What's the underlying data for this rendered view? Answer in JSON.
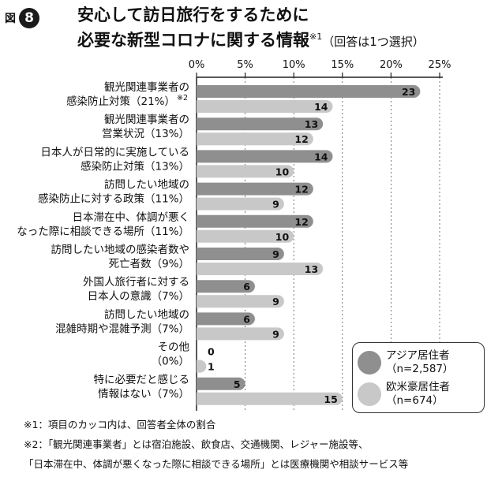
{
  "figure": {
    "label": "図",
    "number": "8",
    "title_line1": "安心して訪日旅行をするために",
    "title_line2": "必要な新型コロナに関する情報",
    "title_note": "※1",
    "title_sub": "（回答は1つ選択）"
  },
  "colors": {
    "asia": "#8f8f8f",
    "western": "#c8c8c8",
    "axis": "#222222",
    "grid": "#555555"
  },
  "chart_data": {
    "type": "bar",
    "orientation": "horizontal",
    "categories": [
      [
        "観光関連事業者の",
        "感染防止対策（21%）"
      ],
      [
        "観光関連事業者の",
        "営業状況（13%）"
      ],
      [
        "日本人が日常的に実施している",
        "感染防止対策（13%）"
      ],
      [
        "訪問したい地域の",
        "感染防止に対する政策（11%）"
      ],
      [
        "日本滞在中、体調が悪く",
        "なった際に相談できる場所（11%）"
      ],
      [
        "訪問したい地域の感染者数や",
        "死亡者数（9%）"
      ],
      [
        "外国人旅行者に対する",
        "日本人の意識（7%）"
      ],
      [
        "訪問したい地域の",
        "混雑時期や混雑予測（7%）"
      ],
      [
        "その他",
        "（0%）"
      ],
      [
        "特に必要だと感じる",
        "情報はない（7%）"
      ]
    ],
    "category_notes": [
      "※2",
      "",
      "",
      "",
      "",
      "",
      "",
      "",
      "",
      ""
    ],
    "series": [
      {
        "name": "アジア居住者",
        "sample": "（n=2,587）",
        "values": [
          23,
          13,
          14,
          12,
          12,
          9,
          6,
          6,
          0,
          5
        ]
      },
      {
        "name": "欧米豪居住者",
        "sample": "（n=674）",
        "values": [
          14,
          12,
          10,
          9,
          10,
          13,
          9,
          9,
          1,
          15
        ]
      }
    ],
    "xlim": [
      0,
      25
    ],
    "xticks": [
      "0%",
      "5%",
      "10%",
      "15%",
      "20%",
      "25%"
    ],
    "grid": true,
    "legend_position": "bottom-right"
  },
  "footnotes": [
    "※1：項目のカッコ内は、回答者全体の割合",
    "※2：「観光関連事業者」とは宿泊施設、飲食店、交通機関、レジャー施設等、",
    "「日本滞在中、体調が悪くなった際に相談できる場所」とは医療機関や相談サービス等"
  ]
}
